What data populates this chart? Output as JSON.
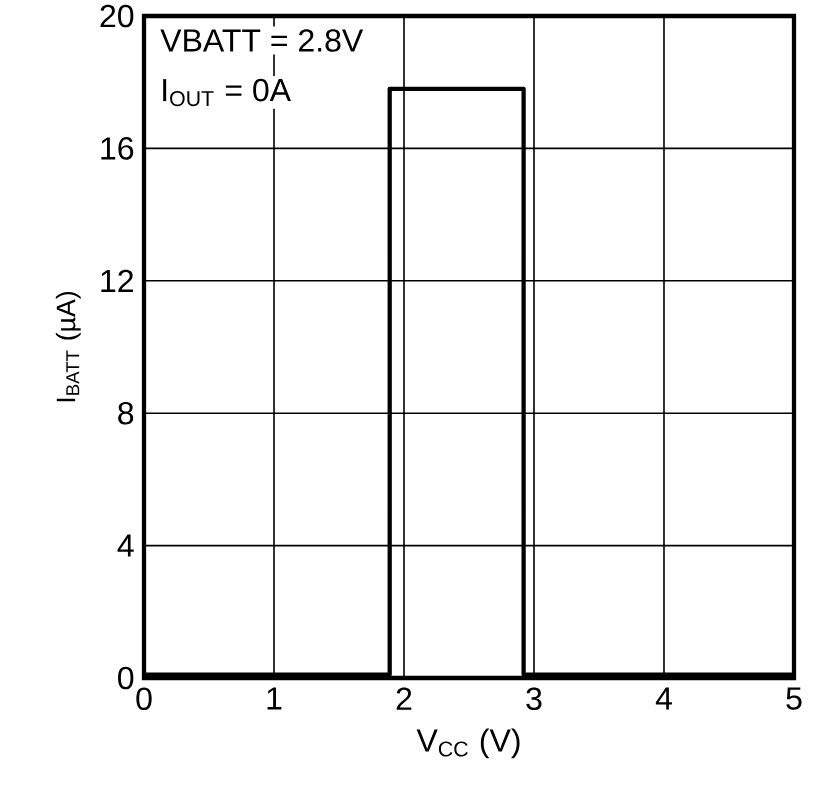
{
  "chart_data": {
    "type": "line",
    "xlabel": "V$_{CC}$ (V)",
    "ylabel": "I$_{BATT}$ (µA)",
    "annotations": [
      "VBATT = 2.8V",
      "I$_{OUT}$ = 0A"
    ],
    "series": [
      {
        "color": "#000000",
        "x": [
          0,
          1.89,
          1.89,
          2.92,
          2.92,
          5
        ],
        "values": [
          0.1,
          0.1,
          17.8,
          17.8,
          0.1,
          0.1
        ]
      }
    ],
    "xlim": [
      0,
      5
    ],
    "ylim": [
      0,
      20
    ],
    "xticks": [
      0,
      1,
      2,
      3,
      4,
      5
    ],
    "yticks": [
      0,
      4,
      8,
      12,
      16,
      20
    ],
    "grid": true,
    "marker": "none",
    "line_style": "solid"
  }
}
